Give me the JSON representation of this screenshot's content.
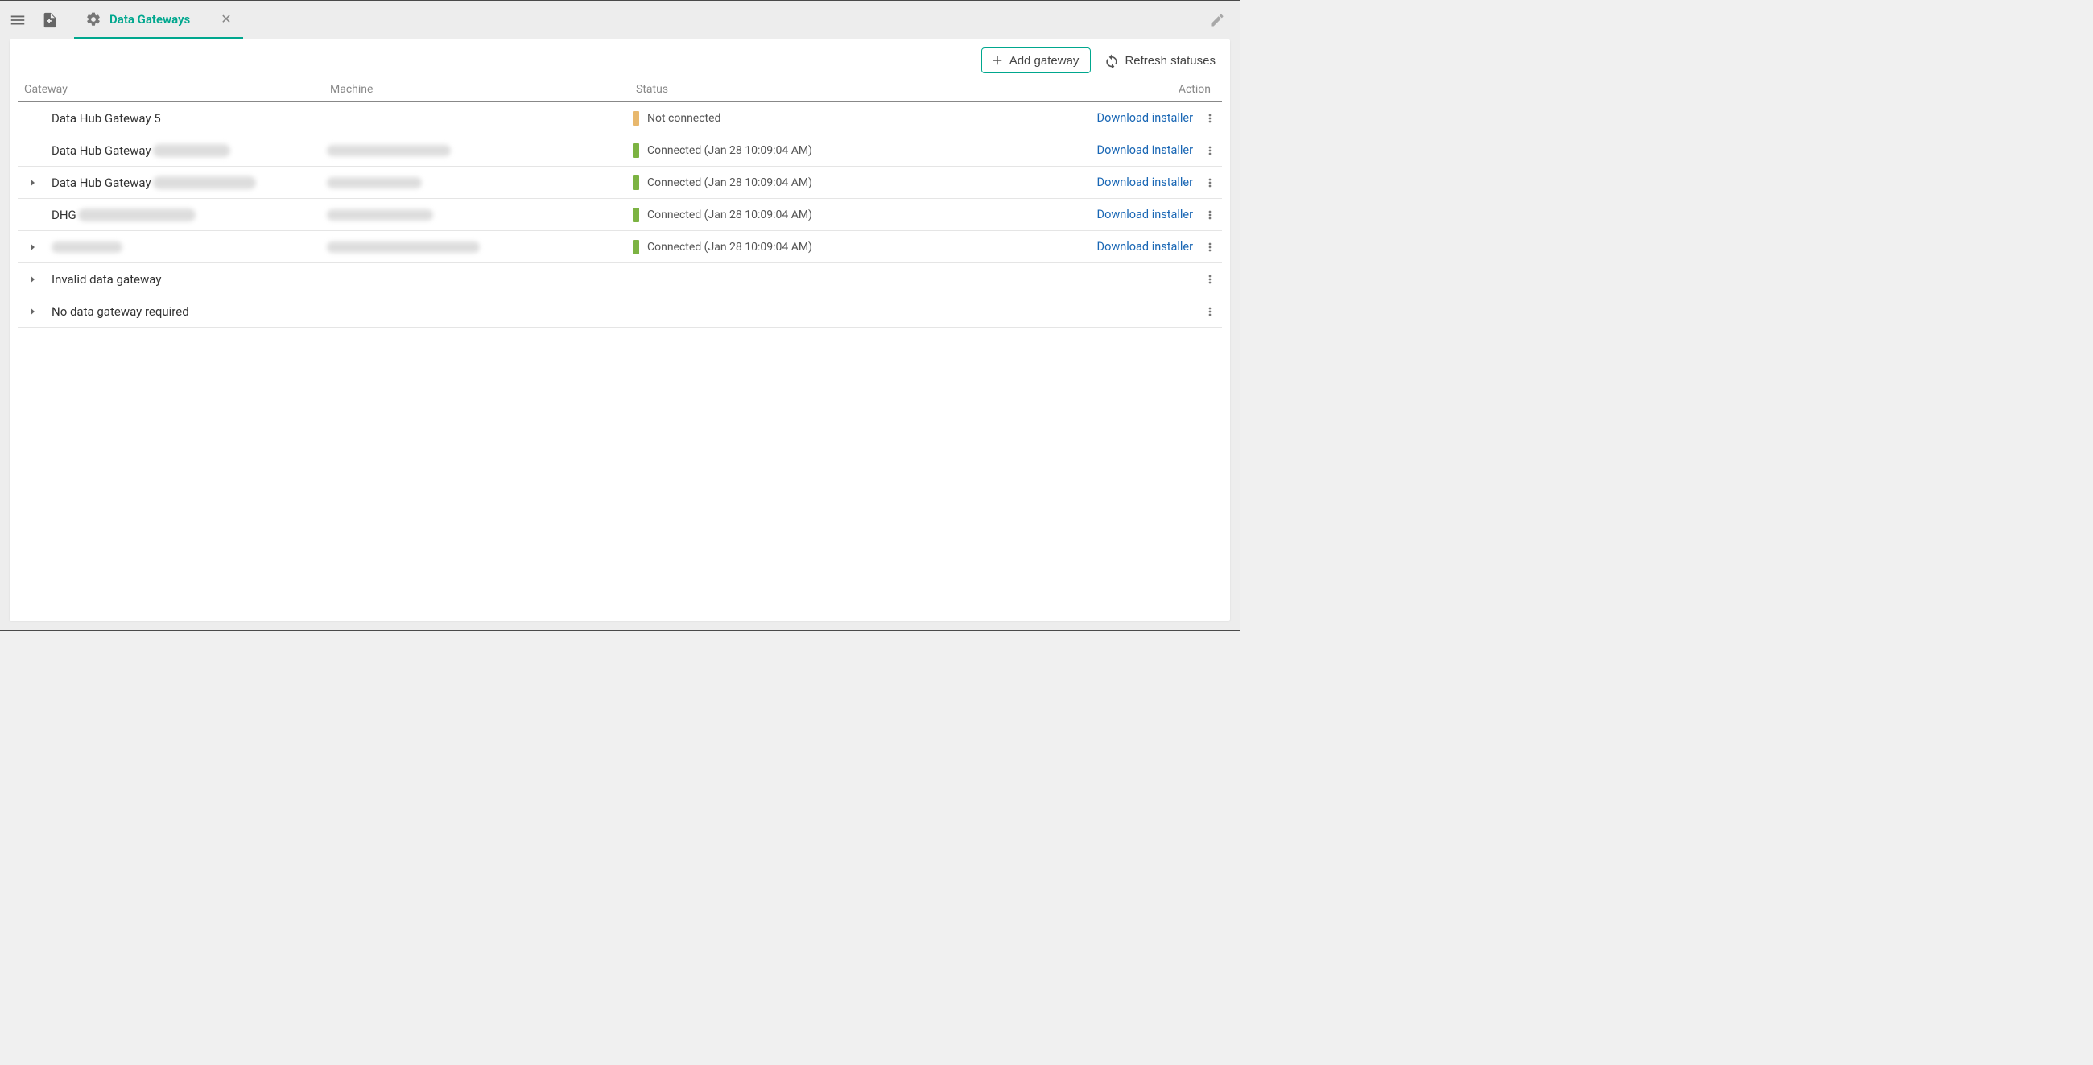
{
  "topBar": {
    "tab": {
      "label": "Data Gateways"
    }
  },
  "actions": {
    "addGateway": "Add gateway",
    "refresh": "Refresh statuses"
  },
  "colors": {
    "accent": "#00a78e",
    "link": "#1866b4",
    "statusConnected": "#7cb342",
    "statusNotConnected": "#e8b86d",
    "border": "#e5e5e5",
    "headerBorder": "#888888",
    "textMuted": "#888888",
    "background": "#ededed",
    "panel": "#ffffff"
  },
  "table": {
    "columns": {
      "gateway": "Gateway",
      "machine": "Machine",
      "status": "Status",
      "action": "Action"
    },
    "downloadLabel": "Download installer",
    "rows": [
      {
        "expandable": false,
        "name": "Data Hub Gateway 5",
        "nameBlur": {
          "show": false
        },
        "machineBlur": {
          "show": false
        },
        "status": {
          "color": "#e8b86d",
          "text": "Not connected"
        },
        "download": true
      },
      {
        "expandable": false,
        "name": "Data Hub Gateway",
        "nameBlur": {
          "show": true,
          "width": 96,
          "height": 16
        },
        "machineBlur": {
          "show": true,
          "width": 154,
          "height": 14
        },
        "status": {
          "color": "#7cb342",
          "text": "Connected (Jan 28 10:09:04 AM)"
        },
        "download": true
      },
      {
        "expandable": true,
        "name": "Data Hub Gateway",
        "nameBlur": {
          "show": true,
          "width": 128,
          "height": 16
        },
        "machineBlur": {
          "show": true,
          "width": 118,
          "height": 14
        },
        "status": {
          "color": "#7cb342",
          "text": "Connected (Jan 28 10:09:04 AM)"
        },
        "download": true
      },
      {
        "expandable": false,
        "name": "DHG",
        "nameBlur": {
          "show": true,
          "width": 146,
          "height": 16
        },
        "machineBlur": {
          "show": true,
          "width": 132,
          "height": 14
        },
        "status": {
          "color": "#7cb342",
          "text": "Connected (Jan 28 10:09:04 AM)"
        },
        "download": true
      },
      {
        "expandable": true,
        "name": "",
        "nameBlur": {
          "show": true,
          "width": 88,
          "height": 14
        },
        "machineBlur": {
          "show": true,
          "width": 190,
          "height": 14
        },
        "status": {
          "color": "#7cb342",
          "text": "Connected (Jan 28 10:09:04 AM)"
        },
        "download": true
      },
      {
        "expandable": true,
        "name": "Invalid data gateway",
        "nameBlur": {
          "show": false
        },
        "machineBlur": {
          "show": false
        },
        "status": null,
        "download": false
      },
      {
        "expandable": true,
        "name": "No data gateway required",
        "nameBlur": {
          "show": false
        },
        "machineBlur": {
          "show": false
        },
        "status": null,
        "download": false
      }
    ]
  }
}
